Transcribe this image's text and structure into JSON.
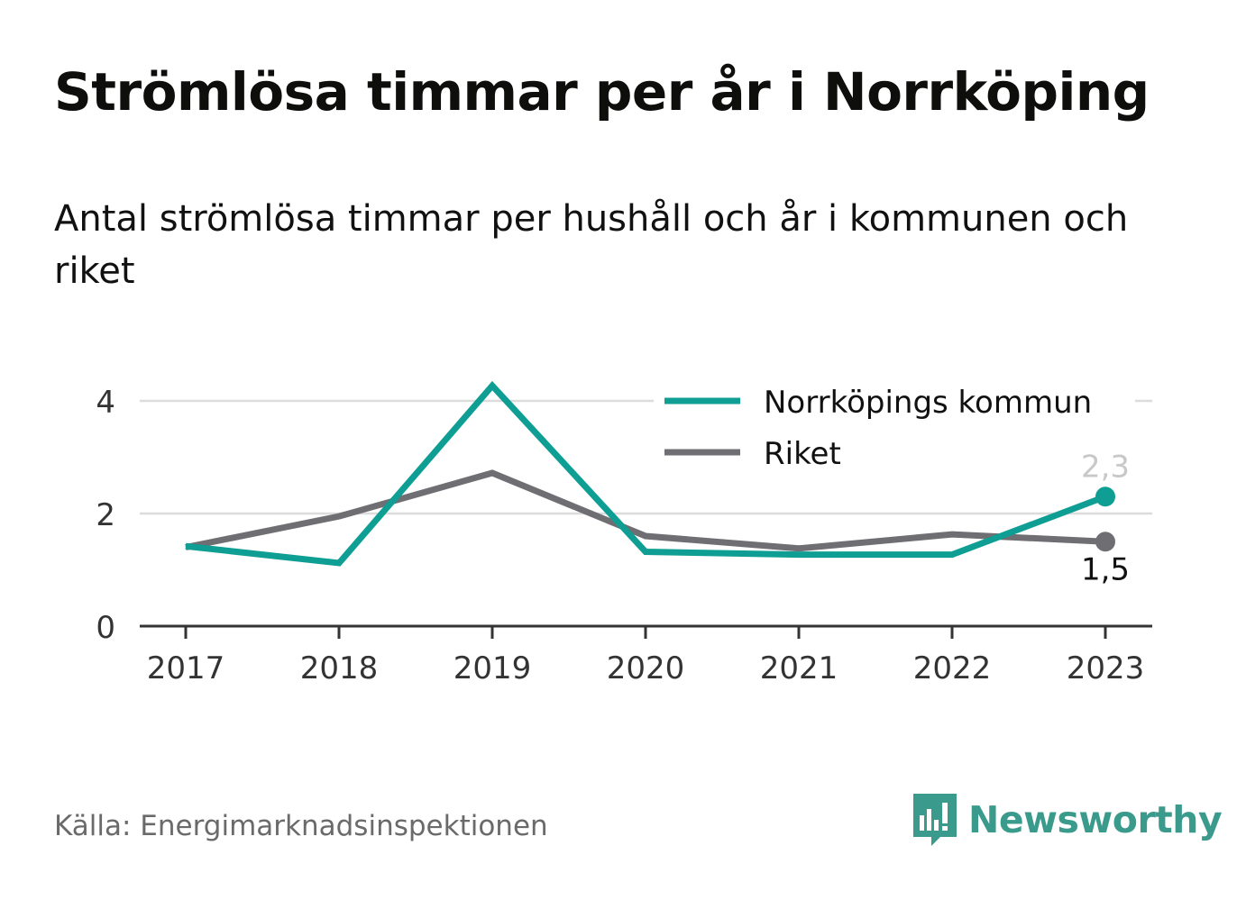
{
  "header": {
    "title": "Strömlösa timmar per år i Norrköping",
    "subtitle": "Antal strömlösa timmar per hushåll och år i kommunen och riket"
  },
  "footer": {
    "source": "Källa: Energimarknadsinspektionen",
    "brand": "Newsworthy",
    "brand_icon": "bar-chart-speech-bubble-icon"
  },
  "colors": {
    "kommun": "#0e9e94",
    "riket": "#6f6e72",
    "grid": "#dcdcdc",
    "axis": "#333333",
    "brand": "#3a9a8c"
  },
  "chart_data": {
    "type": "line",
    "categories": [
      "2017",
      "2018",
      "2019",
      "2020",
      "2021",
      "2022",
      "2023"
    ],
    "ylim": [
      0,
      4.5
    ],
    "yticks": [
      {
        "value": 0,
        "label": "0"
      },
      {
        "value": 2,
        "label": "2"
      },
      {
        "value": 4,
        "label": "4"
      }
    ],
    "grid": true,
    "legend_position": "top-right",
    "series": [
      {
        "name": "Norrköpings kommun",
        "values": [
          1.42,
          1.12,
          4.27,
          1.32,
          1.27,
          1.27,
          2.3
        ],
        "end_label": "2,3",
        "color_key": "kommun"
      },
      {
        "name": "Riket",
        "values": [
          1.4,
          1.95,
          2.72,
          1.6,
          1.38,
          1.63,
          1.5
        ],
        "end_label": "1,5",
        "color_key": "riket"
      }
    ]
  }
}
